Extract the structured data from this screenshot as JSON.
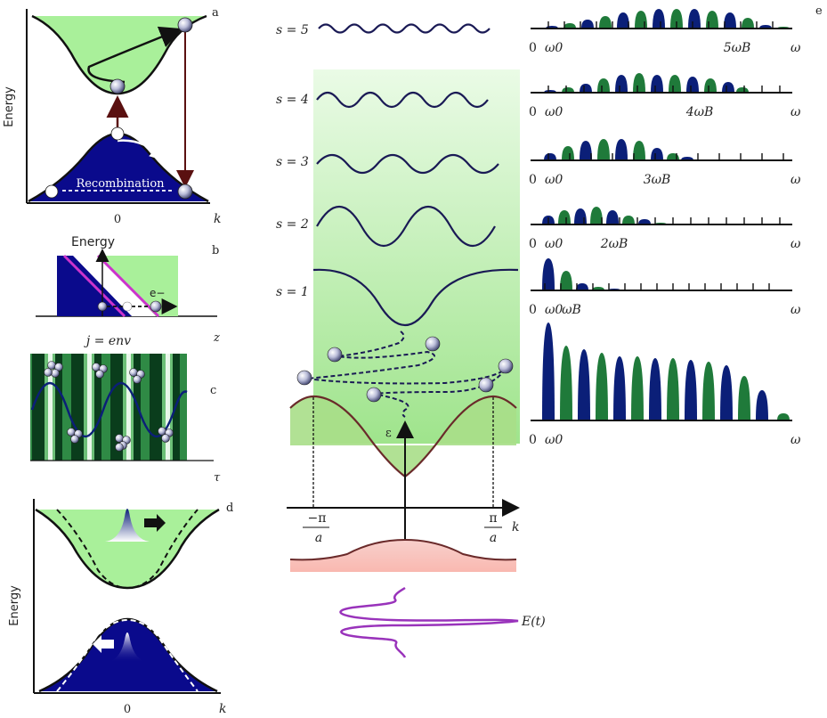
{
  "panel_a": {
    "letter": "a",
    "y_axis": "Energy",
    "x_axis": "k",
    "x_tick": "0",
    "recombination": "Recombination"
  },
  "panel_b": {
    "letter": "b",
    "y_axis": "Energy",
    "x_axis": "z",
    "electron": "e−"
  },
  "panel_c": {
    "letter": "c",
    "title": "j = env",
    "x_axis": "τ"
  },
  "panel_d": {
    "letter": "d",
    "y_axis": "Energy",
    "x_axis": "k",
    "x_tick": "0"
  },
  "panel_center": {
    "levels": [
      "s = 5",
      "s = 4",
      "s = 3",
      "s = 2",
      "s = 1"
    ],
    "energy_axis": "ε",
    "k_axis": "k",
    "minus_pi": "−π",
    "pi": "π",
    "a": "a",
    "field": "E(t)"
  },
  "panel_e": {
    "letter": "e",
    "colors": {
      "blue": "#0b1f78",
      "green": "#1f7a3a",
      "cb_green": "#b4f2a4",
      "vb_blue": "#0a0a8c"
    },
    "spectra": [
      {
        "start": "0",
        "w0": "ω0",
        "mark": "5ωB",
        "end": "ω"
      },
      {
        "start": "0",
        "w0": "ω0",
        "mark": "4ωB",
        "end": "ω"
      },
      {
        "start": "0",
        "w0": "ω0",
        "mark": "3ωB",
        "end": "ω"
      },
      {
        "start": "0",
        "w0": "ω0",
        "mark": "2ωB",
        "end": "ω"
      },
      {
        "start": "0",
        "w0": "ω0",
        "mark": "ωB",
        "end": "ω"
      },
      {
        "start": "0",
        "w0": "ω0",
        "mark": "",
        "end": "ω"
      }
    ]
  }
}
